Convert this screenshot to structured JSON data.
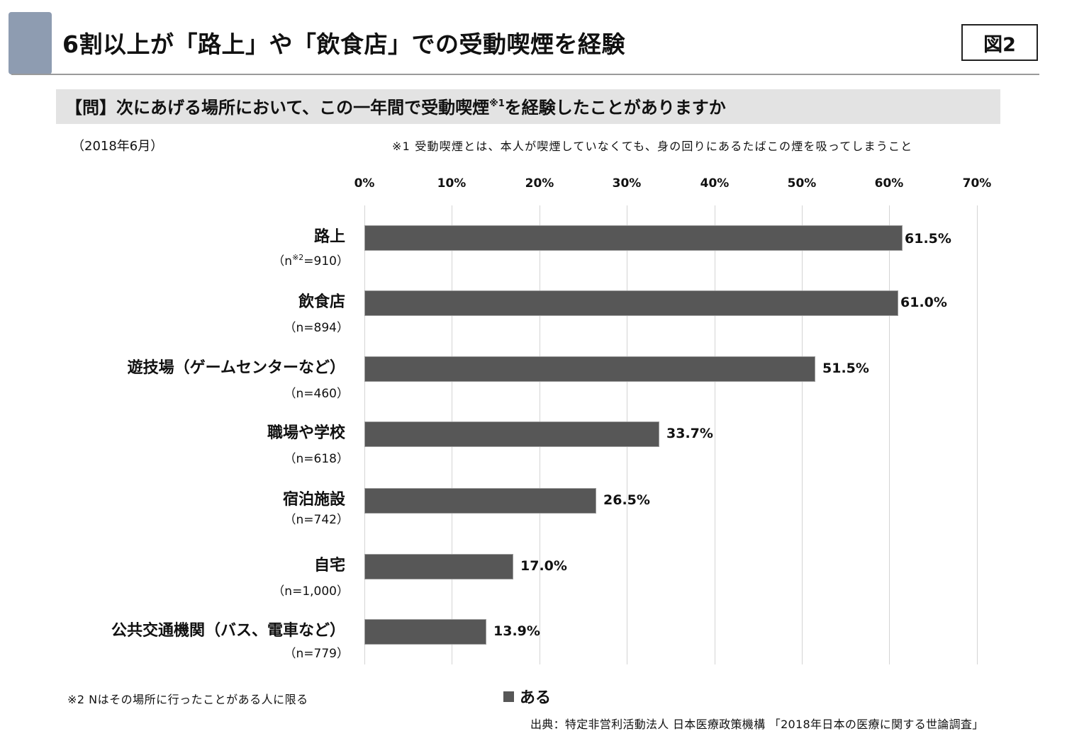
{
  "header": {
    "title": "6割以上が「路上」や「飲食店」での受動喫煙を経験",
    "figure_label": "図2",
    "accent_color": "#8e9cb1"
  },
  "question": {
    "text_before": "【問】次にあげる場所において、この一年間で受動喫煙",
    "note_mark": "※1",
    "text_after": "を経験したことがありますか"
  },
  "survey_date": "（2018年6月）",
  "footnotes": {
    "note1": "※1 受動喫煙とは、本人が喫煙していなくても、身の回りにあるたばこの煙を吸ってしまうこと",
    "note2": "※2 Nはその場所に行ったことがある人に限る"
  },
  "source": "出典：特定非営利活動法人 日本医療政策機構 「2018年日本の医療に関する世論調査」",
  "chart_data": {
    "type": "bar",
    "orientation": "horizontal",
    "title": "6割以上が「路上」や「飲食店」での受動喫煙を経験",
    "xlabel": "",
    "ylabel": "",
    "xlim": [
      0,
      70
    ],
    "x_ticks": [
      0,
      10,
      20,
      30,
      40,
      50,
      60,
      70
    ],
    "x_tick_labels": [
      "0%",
      "10%",
      "20%",
      "30%",
      "40%",
      "50%",
      "60%",
      "70%"
    ],
    "x_axis_position": "top",
    "grid": true,
    "legend": {
      "placement": "bottom-center",
      "entries": [
        "ある"
      ]
    },
    "bar_color": "#575757",
    "categories": [
      "路上",
      "飲食店",
      "遊技場（ゲームセンターなど）",
      "職場や学校",
      "宿泊施設",
      "自宅",
      "公共交通機関（バス、電車など）"
    ],
    "sample_sizes": [
      "910",
      "894",
      "460",
      "618",
      "742",
      "1,000",
      "779"
    ],
    "sample_size_prefix": "（n",
    "sample_size_note_mark": "※2",
    "series": [
      {
        "name": "ある",
        "values": [
          61.5,
          61.0,
          51.5,
          33.7,
          26.5,
          17.0,
          13.9
        ],
        "value_labels": [
          "61.5%",
          "61.0%",
          "51.5%",
          "33.7%",
          "26.5%",
          "17.0%",
          "13.9%"
        ]
      }
    ]
  }
}
